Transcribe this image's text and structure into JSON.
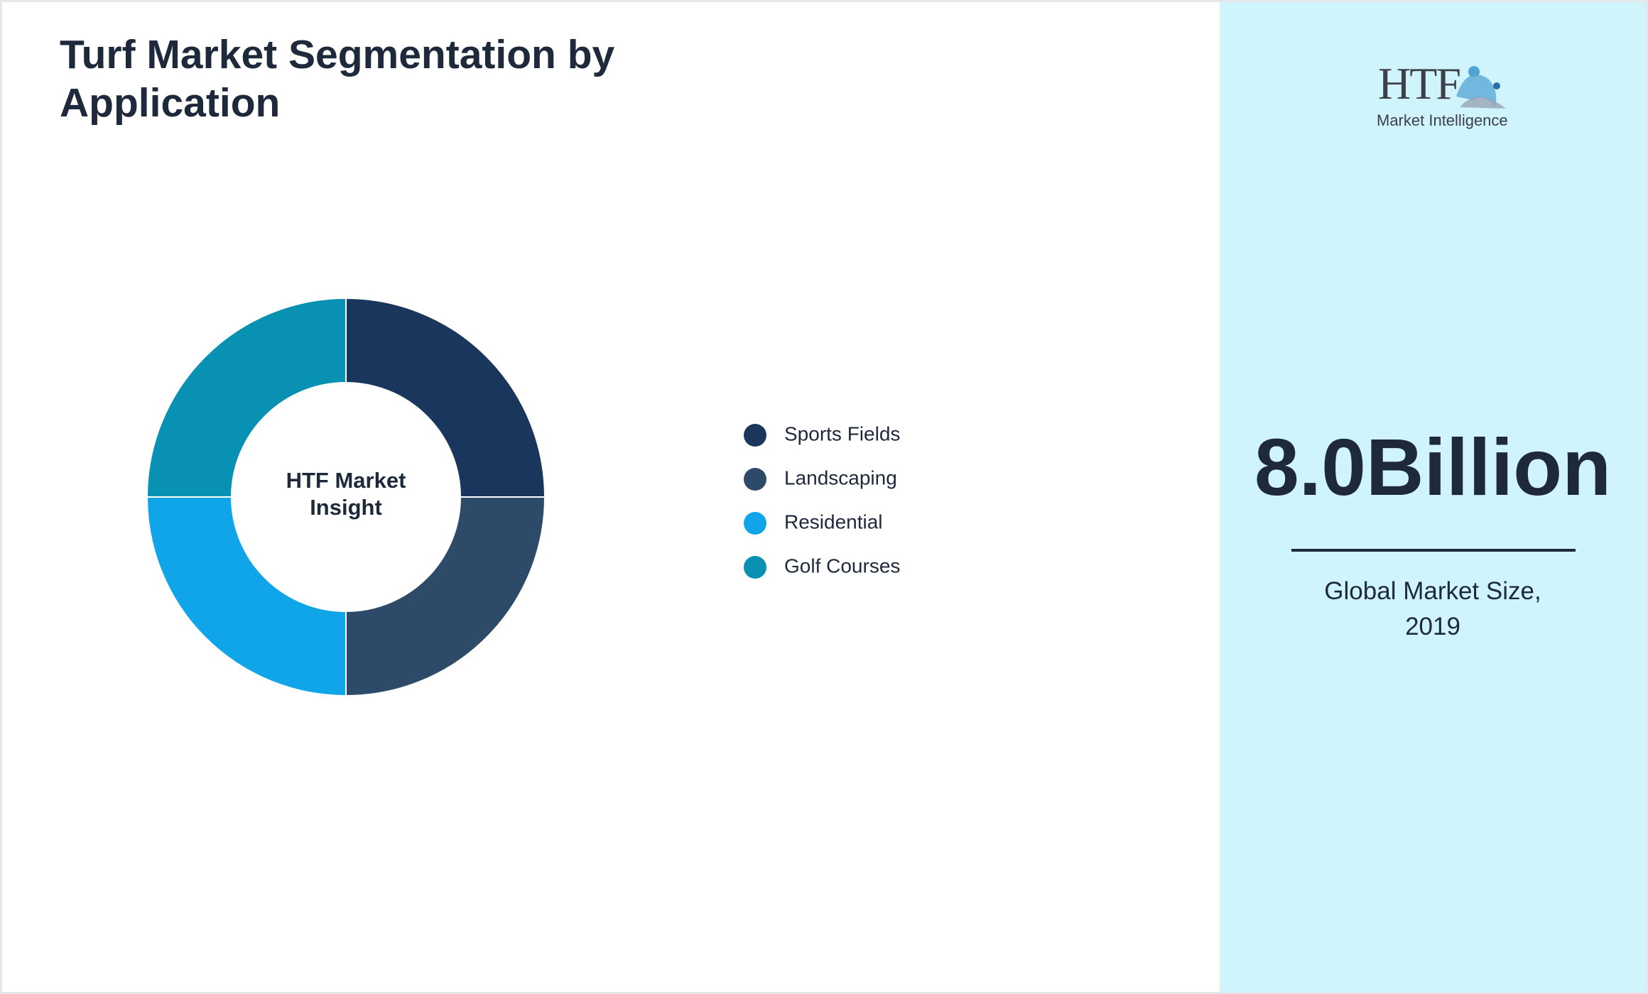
{
  "chart_data": {
    "type": "donut",
    "title": "Turf Market Segmentation by Application",
    "center_label": "HTF Market Insight",
    "categories": [
      "Sports Fields",
      "Landscaping",
      "Residential",
      "Golf Courses"
    ],
    "values": [
      25,
      25,
      25,
      25
    ],
    "colors": [
      "#1b365d",
      "#2d4a68",
      "#10a5e9",
      "#0891b2"
    ]
  },
  "side_panel": {
    "value": "8.0Billion",
    "caption": "Global Market Size, 2019"
  },
  "logo": {
    "mark": "HTF",
    "tagline": "Market Intelligence"
  }
}
